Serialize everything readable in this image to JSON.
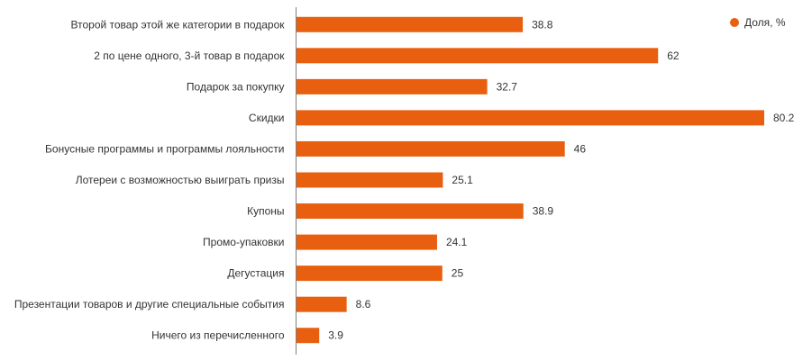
{
  "chart_data": {
    "type": "bar",
    "orientation": "horizontal",
    "categories": [
      "Второй товар этой же категории в подарок",
      "2 по цене одного, 3-й товар в подарок",
      "Подарок за покупку",
      "Скидки",
      "Бонусные программы и программы лояльности",
      "Лотереи с возможностью выиграть призы",
      "Купоны",
      "Промо-упаковки",
      "Дегустация",
      "Презентации товаров и другие специальные события",
      "Ничего из перечисленного"
    ],
    "values": [
      38.8,
      62,
      32.7,
      80.2,
      46,
      25.1,
      38.9,
      24.1,
      25,
      8.6,
      3.9
    ],
    "value_labels": [
      "38.8",
      "62",
      "32.7",
      "80.2",
      "46",
      "25.1",
      "38.9",
      "24.1",
      "25",
      "8.6",
      "3.9"
    ],
    "series": [
      {
        "name": "Доля, %",
        "color": "#e8600f"
      }
    ],
    "legend_position": "top-right",
    "xlim": [
      0,
      80.2
    ],
    "grid": false
  }
}
